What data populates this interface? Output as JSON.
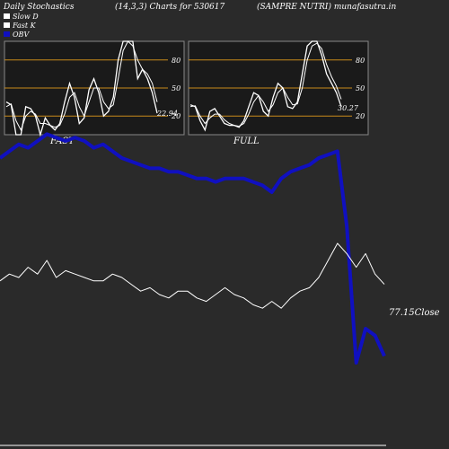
{
  "header": {
    "left": "Daily Stochastics",
    "params": "(14,3,3) Charts for 530617",
    "company": "(SAMPRE NUTRI) munafasutra.in"
  },
  "legend": {
    "items": [
      {
        "label": "Slow  D",
        "color": "#ffffff"
      },
      {
        "label": "Fast K",
        "color": "#ffffff"
      },
      {
        "label": "OBV",
        "color": "#1010c0"
      }
    ]
  },
  "colors": {
    "background": "#2a2a2a",
    "panel_bg": "#1a1a1a",
    "level_line": "#c88a1a",
    "obv": "#1010c0",
    "stoch": "#ffffff",
    "close": "#ffffff"
  },
  "chart_data": [
    {
      "type": "line",
      "title": "FAST",
      "ylim": [
        0,
        100
      ],
      "levels": [
        80,
        50,
        20
      ],
      "level_labels": [
        "80",
        "50",
        "20"
      ],
      "last_value_label": "22.94",
      "series": [
        {
          "name": "Fast K",
          "values": [
            35,
            32,
            0,
            0,
            30,
            28,
            20,
            0,
            18,
            10,
            5,
            12,
            35,
            55,
            40,
            12,
            18,
            48,
            60,
            45,
            20,
            25,
            40,
            80,
            100,
            100,
            100,
            60,
            70,
            60,
            45,
            23
          ]
        },
        {
          "name": "Slow D",
          "values": [
            30,
            33,
            15,
            5,
            20,
            25,
            22,
            12,
            12,
            10,
            8,
            10,
            22,
            40,
            45,
            30,
            20,
            35,
            50,
            50,
            35,
            28,
            32,
            60,
            90,
            100,
            95,
            80,
            70,
            65,
            55,
            35
          ]
        }
      ]
    },
    {
      "type": "line",
      "title": "FULL",
      "ylim": [
        0,
        100
      ],
      "levels": [
        80,
        50,
        20
      ],
      "level_labels": [
        "80",
        "50",
        "20"
      ],
      "last_value_label": "30.27",
      "series": [
        {
          "name": "Fast K",
          "values": [
            32,
            30,
            15,
            5,
            25,
            28,
            20,
            12,
            10,
            10,
            8,
            15,
            30,
            45,
            42,
            25,
            20,
            40,
            55,
            50,
            30,
            28,
            35,
            65,
            95,
            100,
            100,
            85,
            65,
            55,
            45,
            30
          ]
        },
        {
          "name": "Slow D",
          "values": [
            30,
            31,
            20,
            12,
            18,
            22,
            22,
            16,
            12,
            10,
            9,
            12,
            22,
            35,
            42,
            35,
            25,
            32,
            45,
            50,
            40,
            32,
            33,
            50,
            80,
            95,
            98,
            92,
            75,
            62,
            52,
            38
          ]
        }
      ]
    },
    {
      "type": "line",
      "ylim": [
        0,
        100
      ],
      "close_label": "77.15Close",
      "series": [
        {
          "name": "OBV",
          "values": [
            80,
            82,
            84,
            83,
            85,
            87,
            86,
            85,
            86,
            85,
            83,
            84,
            82,
            80,
            79,
            78,
            77,
            77,
            76,
            76,
            75,
            74,
            74,
            73,
            74,
            74,
            74,
            73,
            72,
            70,
            74,
            76,
            77,
            78,
            80,
            81,
            82,
            60,
            20,
            30,
            28,
            22
          ]
        },
        {
          "name": "Close",
          "values": [
            44,
            46,
            45,
            48,
            46,
            50,
            45,
            47,
            46,
            45,
            44,
            44,
            46,
            45,
            43,
            41,
            42,
            40,
            39,
            41,
            41,
            39,
            38,
            40,
            42,
            40,
            39,
            37,
            36,
            38,
            36,
            39,
            41,
            42,
            45,
            50,
            55,
            52,
            48,
            52,
            46,
            43
          ]
        }
      ]
    }
  ]
}
